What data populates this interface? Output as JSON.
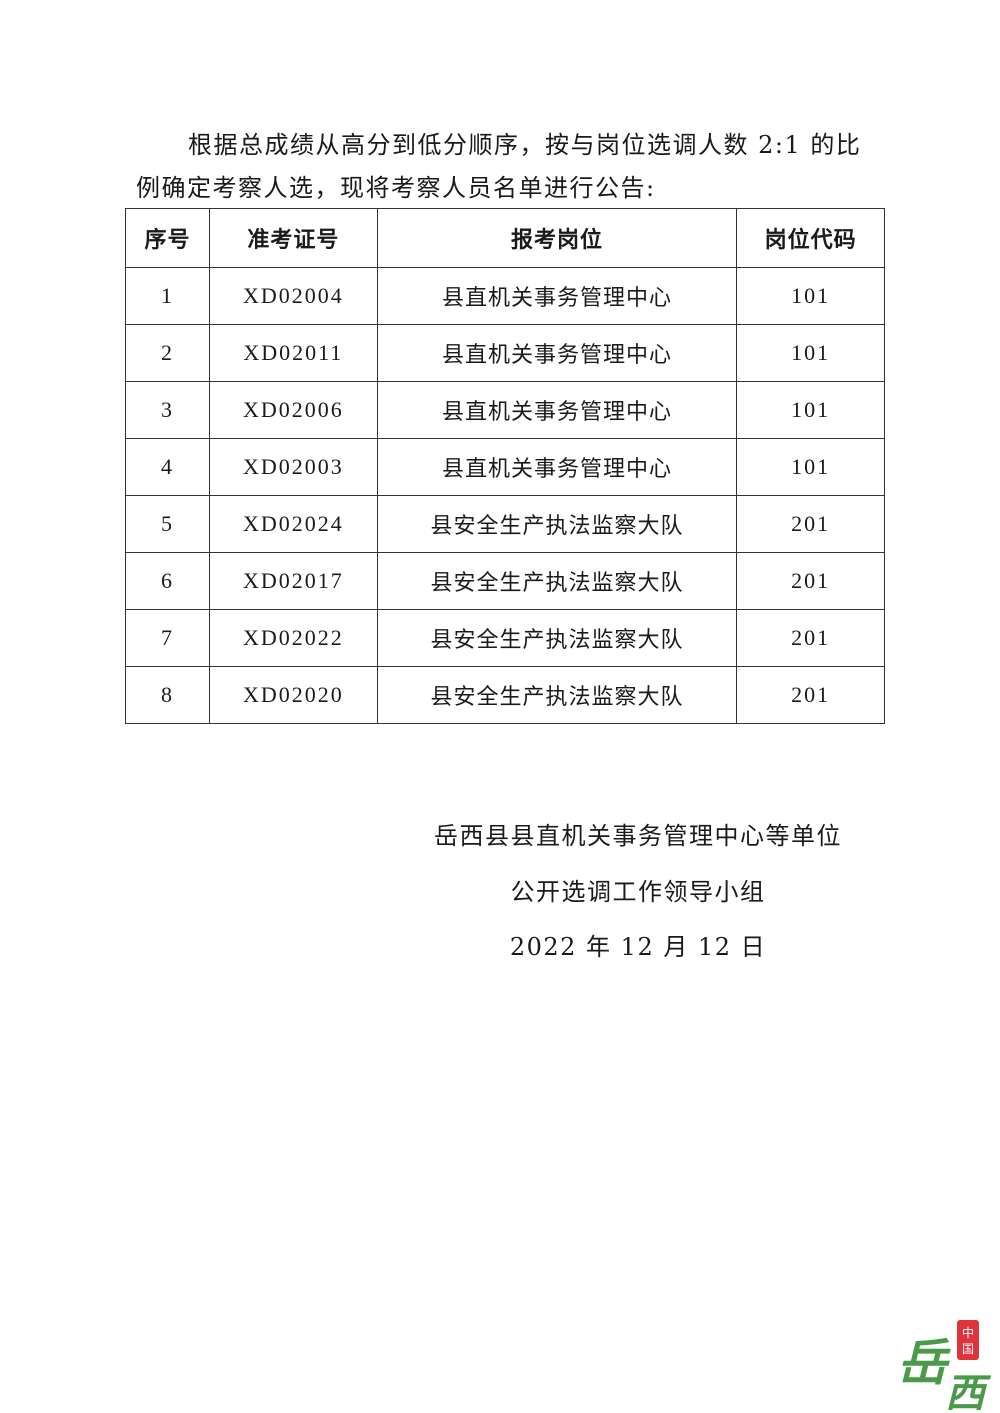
{
  "intro": {
    "line1": "根据总成绩从高分到低分顺序，按与岗位选调人数 2:1 的比",
    "line2": "例确定考察人选，现将考察人员名单进行公告:"
  },
  "table": {
    "headers": [
      "序号",
      "准考证号",
      "报考岗位",
      "岗位代码"
    ],
    "rows": [
      [
        "1",
        "XD02004",
        "县直机关事务管理中心",
        "101"
      ],
      [
        "2",
        "XD02011",
        "县直机关事务管理中心",
        "101"
      ],
      [
        "3",
        "XD02006",
        "县直机关事务管理中心",
        "101"
      ],
      [
        "4",
        "XD02003",
        "县直机关事务管理中心",
        "101"
      ],
      [
        "5",
        "XD02024",
        "县安全生产执法监察大队",
        "201"
      ],
      [
        "6",
        "XD02017",
        "县安全生产执法监察大队",
        "201"
      ],
      [
        "7",
        "XD02022",
        "县安全生产执法监察大队",
        "201"
      ],
      [
        "8",
        "XD02020",
        "县安全生产执法监察大队",
        "201"
      ]
    ]
  },
  "signature": {
    "org": "岳西县县直机关事务管理中心等单位",
    "group": "公开选调工作领导小组",
    "date": "2022 年 12 月 12 日"
  },
  "logo": {
    "text": "岳西",
    "seal": "中国",
    "green": "#4a9a4a",
    "red": "#e0343c"
  }
}
